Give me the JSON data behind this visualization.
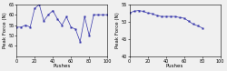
{
  "left_xlabel": "Pushes",
  "left_ylabel": "Peak Force (N)",
  "left_xlim": [
    0,
    100
  ],
  "left_ylim": [
    40,
    65
  ],
  "left_yticks": [
    45,
    50,
    55,
    60,
    65
  ],
  "left_xticks": [
    0,
    20,
    40,
    60,
    80,
    100
  ],
  "left_x": [
    0,
    5,
    10,
    15,
    20,
    25,
    30,
    35,
    40,
    45,
    50,
    55,
    60,
    65,
    70,
    75,
    80,
    85,
    90,
    95,
    100
  ],
  "left_y": [
    54,
    54,
    55,
    54,
    63,
    65,
    57,
    60,
    62,
    58,
    55,
    59,
    54,
    53,
    47,
    59,
    50,
    60,
    60,
    60,
    60
  ],
  "right_xlabel": "Pushes",
  "right_ylabel": "Peak Force (N)",
  "right_xlim": [
    0,
    100
  ],
  "right_ylim": [
    40,
    55
  ],
  "right_yticks": [
    40,
    45,
    50,
    55
  ],
  "right_xticks": [
    0,
    20,
    40,
    60,
    80,
    100
  ],
  "right_x": [
    0,
    5,
    10,
    15,
    20,
    25,
    30,
    35,
    40,
    45,
    50,
    55,
    60,
    65,
    70,
    75,
    80
  ],
  "right_y": [
    52.5,
    53.0,
    53.2,
    53.0,
    52.5,
    52.3,
    51.8,
    51.5,
    51.5,
    51.5,
    51.5,
    51.2,
    51.0,
    50.2,
    49.3,
    48.8,
    48.2
  ],
  "line_color": "#3333aa",
  "marker": "s",
  "markersize": 1.2,
  "linewidth": 0.5,
  "fontsize_label": 4.0,
  "fontsize_tick": 3.5,
  "bg_color": "#f0f0f0"
}
